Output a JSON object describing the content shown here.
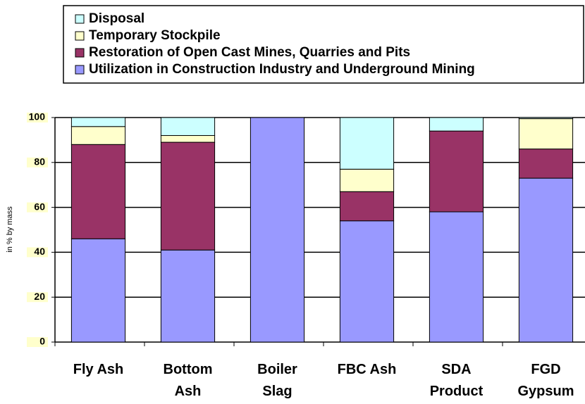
{
  "chart_data": {
    "type": "stacked_bar",
    "y_axis_label": "in % by mass",
    "categories": [
      "Fly Ash",
      "Bottom Ash",
      "Boiler Slag",
      "FBC Ash",
      "SDA Product",
      "FGD Gypsum"
    ],
    "series": [
      {
        "name": "Utilization in Construction Industry and Underground Mining",
        "color": "#9999ff",
        "values": [
          46,
          41,
          100,
          54,
          58,
          73
        ]
      },
      {
        "name": "Restoration of Open Cast Mines, Quarries and Pits",
        "color": "#993366",
        "values": [
          42,
          48,
          0,
          13,
          36,
          13
        ]
      },
      {
        "name": "Temporary Stockpile",
        "color": "#ffffcc",
        "values": [
          8,
          3,
          0,
          10,
          0,
          13.5
        ]
      },
      {
        "name": "Disposal",
        "color": "#ccffff",
        "values": [
          4,
          8,
          0,
          23,
          6,
          0.5
        ]
      }
    ],
    "ylim": [
      0,
      100
    ],
    "yticks": [
      0,
      20,
      40,
      60,
      80,
      100
    ],
    "grid": true,
    "legend": "top"
  }
}
